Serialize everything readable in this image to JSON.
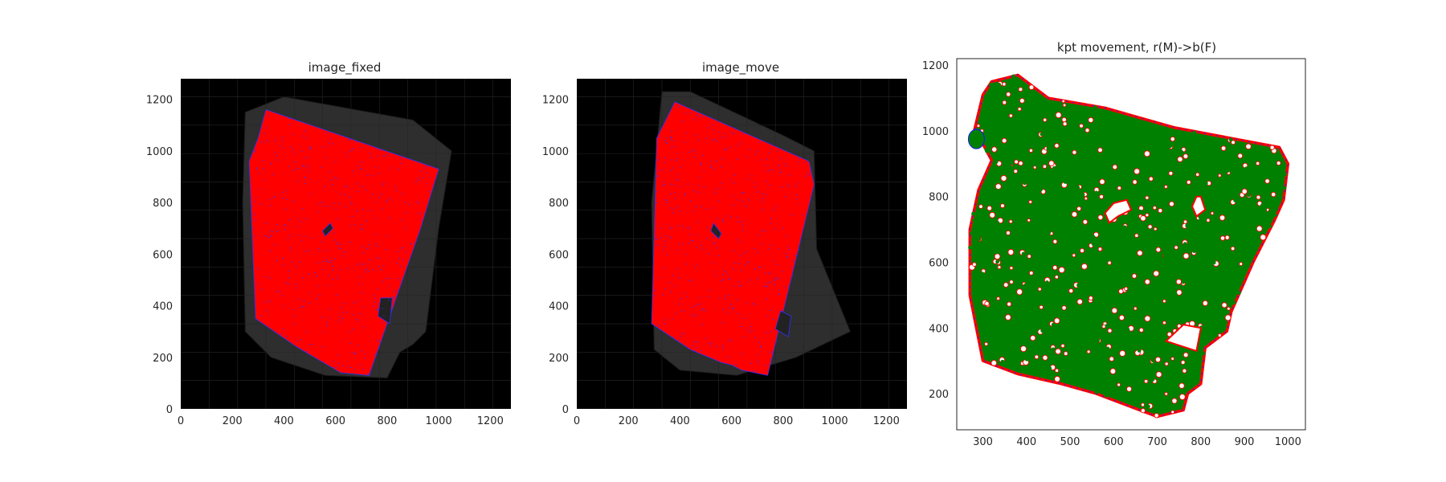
{
  "chart_data": [
    {
      "type": "image",
      "title": "image_fixed",
      "xlim": [
        0,
        1280
      ],
      "ylim": [
        1280,
        0
      ],
      "xticks": [
        0,
        200,
        400,
        600,
        800,
        1000,
        1200
      ],
      "yticks": [
        0,
        200,
        400,
        600,
        800,
        1000,
        1200
      ],
      "background_color": "#000000",
      "tissue_color": "#ff0000",
      "keypoint_color": "#3030ff",
      "tile_color": "#2e2e2e",
      "outline": [
        [
          620,
          140
        ],
        [
          730,
          130
        ],
        [
          930,
          700
        ],
        [
          1000,
          930
        ],
        [
          330,
          1160
        ],
        [
          300,
          1050
        ],
        [
          265,
          960
        ],
        [
          290,
          350
        ],
        [
          450,
          240
        ]
      ],
      "tiles_outline": [
        [
          250,
          300
        ],
        [
          350,
          200
        ],
        [
          560,
          130
        ],
        [
          800,
          120
        ],
        [
          850,
          220
        ],
        [
          900,
          250
        ],
        [
          950,
          300
        ],
        [
          1000,
          700
        ],
        [
          1050,
          1000
        ],
        [
          900,
          1120
        ],
        [
          400,
          1210
        ],
        [
          250,
          1150
        ],
        [
          240,
          800
        ]
      ],
      "holes": [
        [
          [
            560,
            670
          ],
          [
            590,
            700
          ],
          [
            580,
            720
          ],
          [
            550,
            690
          ]
        ],
        [
          [
            765,
            360
          ],
          [
            810,
            330
          ],
          [
            820,
            430
          ],
          [
            775,
            430
          ]
        ]
      ]
    },
    {
      "type": "image",
      "title": "image_move",
      "xlim": [
        0,
        1280
      ],
      "ylim": [
        1280,
        0
      ],
      "xticks": [
        0,
        200,
        400,
        600,
        800,
        1000,
        1200
      ],
      "yticks": [
        0,
        200,
        400,
        600,
        800,
        1000,
        1200
      ],
      "background_color": "#000000",
      "tissue_color": "#ff0000",
      "keypoint_color": "#3030ff",
      "tile_color": "#2e2e2e",
      "outline": [
        [
          600,
          170
        ],
        [
          640,
          150
        ],
        [
          740,
          130
        ],
        [
          920,
          870
        ],
        [
          900,
          960
        ],
        [
          380,
          1190
        ],
        [
          310,
          1050
        ],
        [
          300,
          680
        ],
        [
          290,
          330
        ],
        [
          440,
          230
        ],
        [
          560,
          180
        ]
      ],
      "tiles_outline": [
        [
          300,
          230
        ],
        [
          400,
          150
        ],
        [
          620,
          130
        ],
        [
          850,
          200
        ],
        [
          1060,
          300
        ],
        [
          930,
          620
        ],
        [
          920,
          1000
        ],
        [
          800,
          1060
        ],
        [
          440,
          1230
        ],
        [
          330,
          1230
        ],
        [
          290,
          800
        ]
      ],
      "holes": [
        [
          [
            520,
            690
          ],
          [
            550,
            660
          ],
          [
            560,
            680
          ],
          [
            530,
            720
          ]
        ],
        [
          [
            770,
            310
          ],
          [
            820,
            280
          ],
          [
            830,
            360
          ],
          [
            790,
            380
          ]
        ]
      ]
    },
    {
      "type": "scatter",
      "title": "kpt movement, r(M)->b(F)",
      "xlim": [
        240,
        1040
      ],
      "ylim": [
        1220,
        90
      ],
      "xticks": [
        300,
        400,
        500,
        600,
        700,
        800,
        900,
        1000
      ],
      "yticks": [
        200,
        400,
        600,
        800,
        1000,
        1200
      ],
      "series": [
        {
          "color": "#ff0000"
        },
        {
          "color": "#1a1aff"
        },
        {
          "color": "#008000"
        }
      ],
      "outline": [
        [
          560,
          200
        ],
        [
          600,
          180
        ],
        [
          660,
          150
        ],
        [
          700,
          130
        ],
        [
          760,
          150
        ],
        [
          770,
          200
        ],
        [
          800,
          230
        ],
        [
          810,
          340
        ],
        [
          860,
          390
        ],
        [
          870,
          450
        ],
        [
          920,
          600
        ],
        [
          970,
          730
        ],
        [
          990,
          790
        ],
        [
          1000,
          900
        ],
        [
          980,
          950
        ],
        [
          740,
          1010
        ],
        [
          580,
          1070
        ],
        [
          450,
          1100
        ],
        [
          380,
          1170
        ],
        [
          320,
          1150
        ],
        [
          300,
          1110
        ],
        [
          280,
          1000
        ],
        [
          300,
          960
        ],
        [
          320,
          910
        ],
        [
          290,
          820
        ],
        [
          270,
          700
        ],
        [
          270,
          500
        ],
        [
          300,
          300
        ],
        [
          380,
          260
        ],
        [
          480,
          230
        ]
      ],
      "holes": [
        [
          [
            720,
            360
          ],
          [
            790,
            330
          ],
          [
            800,
            400
          ],
          [
            760,
            410
          ]
        ],
        [
          [
            590,
            720
          ],
          [
            610,
            740
          ],
          [
            640,
            760
          ],
          [
            630,
            790
          ],
          [
            600,
            780
          ],
          [
            580,
            750
          ]
        ],
        [
          [
            780,
            770
          ],
          [
            790,
            740
          ],
          [
            810,
            760
          ],
          [
            800,
            800
          ],
          [
            790,
            800
          ]
        ]
      ]
    }
  ]
}
